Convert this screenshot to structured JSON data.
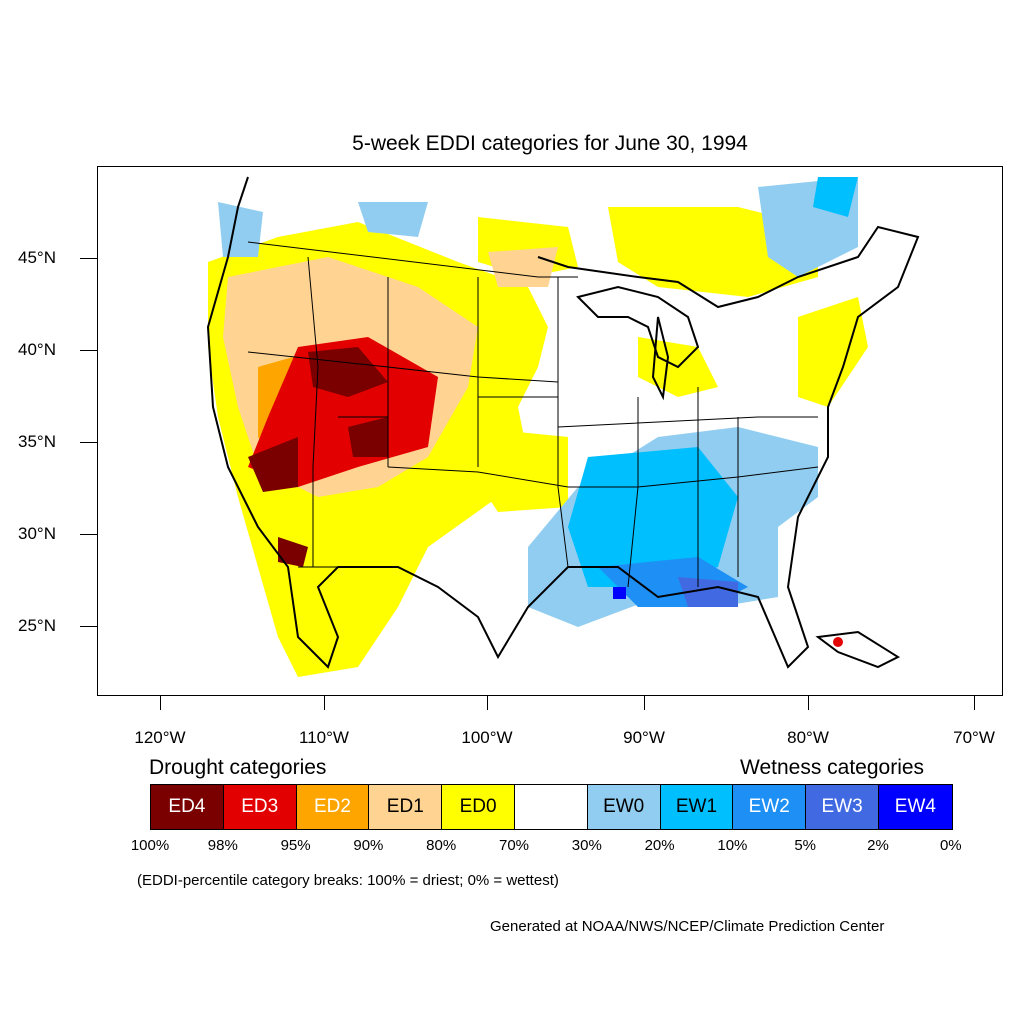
{
  "title": "5-week EDDI categories for June 30, 1994",
  "lat_labels": [
    "45°N",
    "40°N",
    "35°N",
    "30°N",
    "25°N"
  ],
  "lon_labels": [
    "120°W",
    "110°W",
    "100°W",
    "90°W",
    "80°W",
    "70°W"
  ],
  "legend": {
    "drought_heading": "Drought categories",
    "wetness_heading": "Wetness categories",
    "categories": [
      {
        "label": "ED4",
        "color": "#7a0000",
        "text_color": "#ffffff"
      },
      {
        "label": "ED3",
        "color": "#e30000",
        "text_color": "#ffffff"
      },
      {
        "label": "ED2",
        "color": "#ffa500",
        "text_color": "#ffffff"
      },
      {
        "label": "ED1",
        "color": "#ffd391",
        "text_color": "#000000"
      },
      {
        "label": "ED0",
        "color": "#ffff00",
        "text_color": "#000000"
      },
      {
        "label": "",
        "color": "#ffffff",
        "text_color": "#000000"
      },
      {
        "label": "EW0",
        "color": "#91cdf0",
        "text_color": "#000000"
      },
      {
        "label": "EW1",
        "color": "#00bfff",
        "text_color": "#000000"
      },
      {
        "label": "EW2",
        "color": "#1e8ff5",
        "text_color": "#ffffff"
      },
      {
        "label": "EW3",
        "color": "#4169e1",
        "text_color": "#ffffff"
      },
      {
        "label": "EW4",
        "color": "#0000ff",
        "text_color": "#ffffff"
      }
    ],
    "breaks": [
      "100%",
      "98%",
      "95%",
      "90%",
      "80%",
      "70%",
      "30%",
      "20%",
      "10%",
      "5%",
      "2%",
      "0%"
    ]
  },
  "note": "(EDDI-percentile category breaks: 100% = driest; 0% = wettest)",
  "credit": "Generated at NOAA/NWS/NCEP/Climate Prediction Center"
}
